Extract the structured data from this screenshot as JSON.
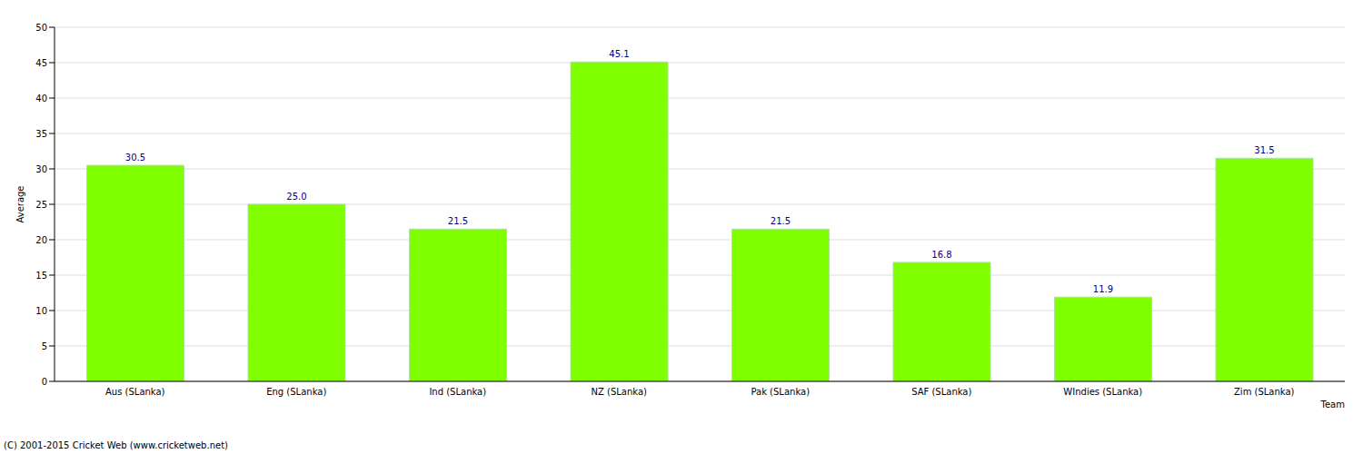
{
  "chart_data": {
    "type": "bar",
    "categories": [
      "Aus (SLanka)",
      "Eng (SLanka)",
      "Ind (SLanka)",
      "NZ (SLanka)",
      "Pak (SLanka)",
      "SAF (SLanka)",
      "WIndies (SLanka)",
      "Zim (SLanka)"
    ],
    "values": [
      30.5,
      25.0,
      21.5,
      45.1,
      21.5,
      16.8,
      11.9,
      31.5
    ],
    "value_labels": [
      "30.5",
      "25.0",
      "21.5",
      "45.1",
      "21.5",
      "16.8",
      "11.9",
      "31.5"
    ],
    "color": "#80ff00",
    "ylim": [
      0,
      50
    ],
    "yticks": [
      0,
      5,
      10,
      15,
      20,
      25,
      30,
      35,
      40,
      45,
      50
    ],
    "grid": true,
    "data_labels": true,
    "y_label": "Average",
    "x_label": "Team",
    "annotation": "(C) 2001-2015 Cricket Web (www.cricketweb.net)"
  }
}
